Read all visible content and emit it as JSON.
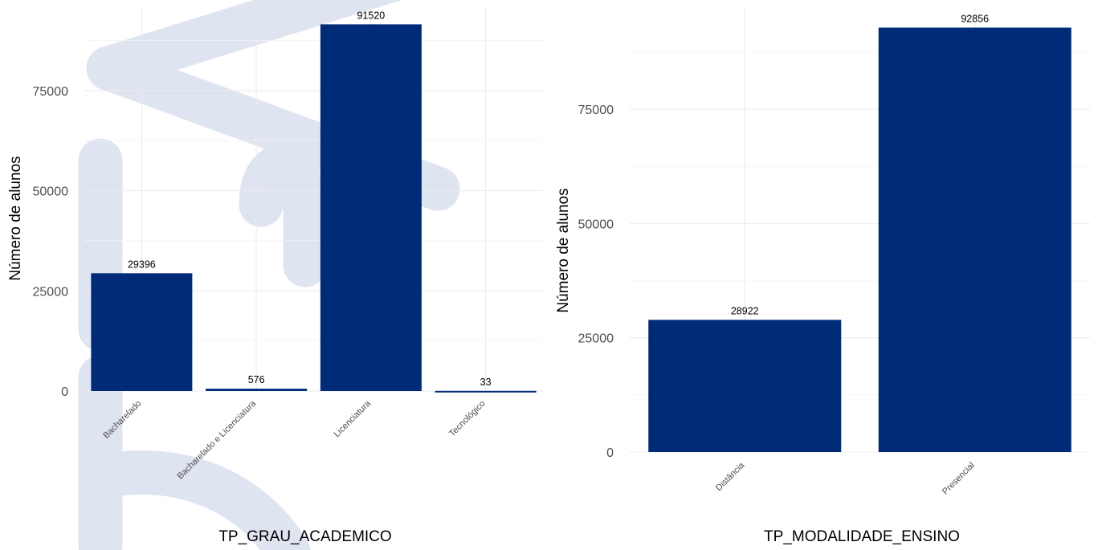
{
  "colors": {
    "bar": "#002b78",
    "watermark": "#dfe4f1",
    "grid": "#ebebeb",
    "background": "#ffffff"
  },
  "chart_data": [
    {
      "type": "bar",
      "title": "",
      "xlabel": "TP_GRAU_ACADEMICO",
      "ylabel": "Número de alunos",
      "categories": [
        "Bacharelado",
        "Bacharelado e Licenciatura",
        "Licenciatura",
        "Tecnológico"
      ],
      "values": [
        29396,
        576,
        91520,
        33
      ],
      "data_labels": [
        "29396",
        "576",
        "91520",
        "33"
      ],
      "yticks": [
        0,
        25000,
        50000,
        75000
      ],
      "ytick_labels": [
        "0",
        "25000",
        "50000",
        "75000"
      ],
      "ylim": [
        0,
        96000
      ],
      "grid": true,
      "legend": "none",
      "xtick_rotation": 45
    },
    {
      "type": "bar",
      "title": "",
      "xlabel": "TP_MODALIDADE_ENSINO",
      "ylabel": "Número de alunos",
      "categories": [
        "Distância",
        "Presencial"
      ],
      "values": [
        28922,
        92856
      ],
      "data_labels": [
        "28922",
        "92856"
      ],
      "yticks": [
        0,
        25000,
        50000,
        75000
      ],
      "ytick_labels": [
        "0",
        "25000",
        "50000",
        "75000"
      ],
      "ylim": [
        0,
        97500
      ],
      "grid": true,
      "legend": "none",
      "xtick_rotation": 45
    }
  ]
}
